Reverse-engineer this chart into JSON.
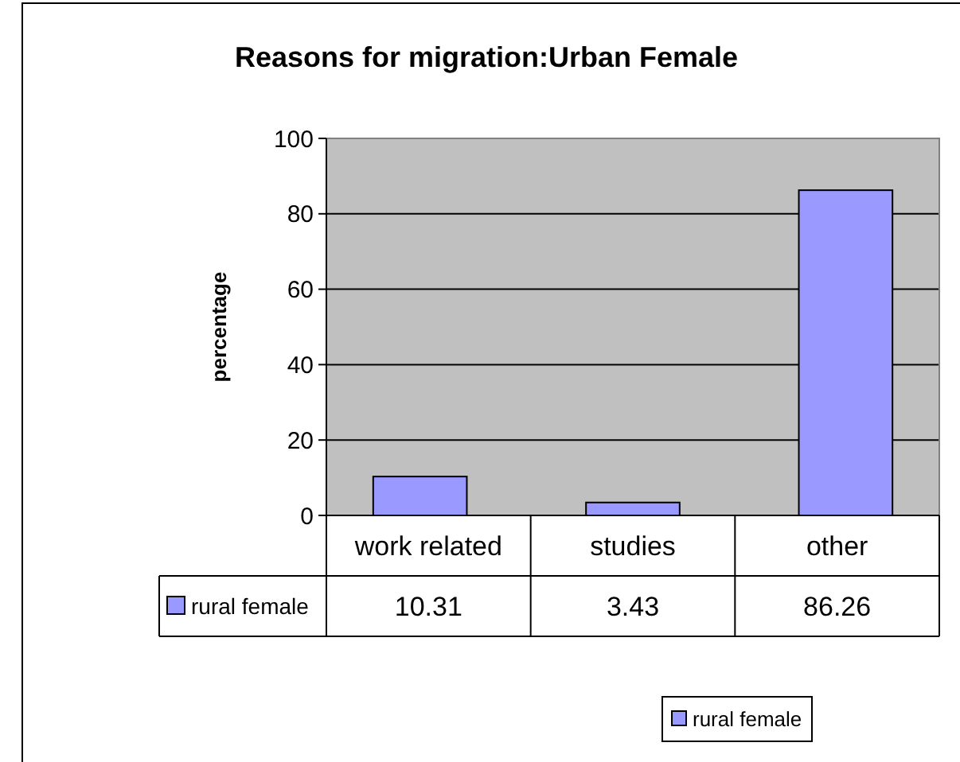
{
  "chart_data": {
    "type": "bar",
    "title": "Reasons for migration:Urban Female",
    "ylabel": "percentage",
    "categories": [
      "work related",
      "studies",
      "other"
    ],
    "series": [
      {
        "name": "rural female",
        "color": "#9999ff",
        "values": [
          10.31,
          3.43,
          86.26
        ]
      }
    ],
    "ylim": [
      0,
      100
    ],
    "yticks": [
      0,
      20,
      40,
      60,
      80,
      100
    ],
    "grid": "y",
    "data_labels": true,
    "legend": "bottom"
  }
}
